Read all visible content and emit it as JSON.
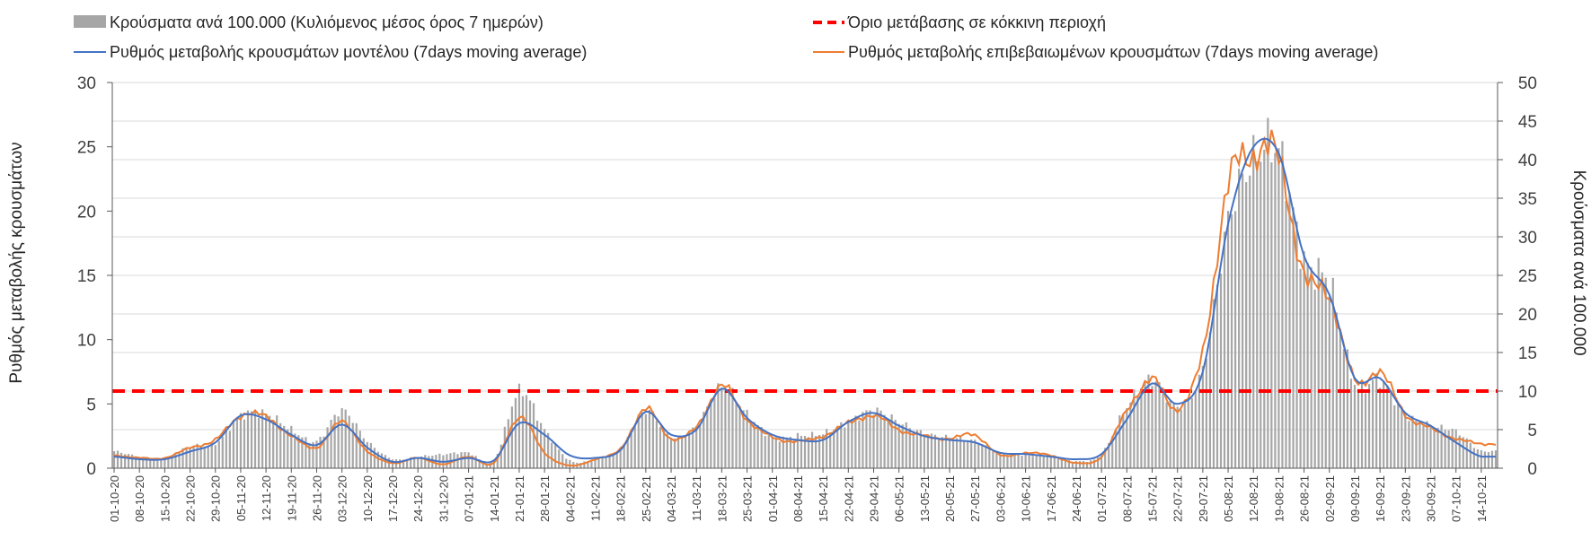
{
  "chart_data": {
    "type": "bar+line",
    "legend": {
      "bars": "Κρούσματα ανά 100.000 (Κυλιόμενος μέσος όρος 7 ημερών)",
      "threshold": "Όριο μετάβασης σε κόκκινη περιοχή",
      "model": "Ρυθμός μεταβολής κρουσμάτων μοντέλου (7days moving average)",
      "confirmed": "Ρυθμός μεταβολής επιβεβαιωμένων κρουσμάτων (7days moving average)"
    },
    "ylabel_left": "Ρυθμός μεταβολής κρουσμάτων",
    "ylabel_right": "Κρούσματα ανά 100.000",
    "y_left": {
      "min": 0,
      "max": 30,
      "ticks": [
        0,
        5,
        10,
        15,
        20,
        25,
        30
      ]
    },
    "y_right": {
      "min": 0,
      "max": 50,
      "ticks": [
        0,
        5,
        10,
        15,
        20,
        25,
        30,
        35,
        40,
        45,
        50
      ]
    },
    "x_labels": [
      "01-10-20",
      "08-10-20",
      "15-10-20",
      "22-10-20",
      "29-10-20",
      "05-11-20",
      "12-11-20",
      "19-11-20",
      "26-11-20",
      "03-12-20",
      "10-12-20",
      "17-12-20",
      "24-12-20",
      "31-12-20",
      "07-01-21",
      "14-01-21",
      "21-01-21",
      "28-01-21",
      "04-02-21",
      "11-02-21",
      "18-02-21",
      "25-02-21",
      "04-03-21",
      "11-03-21",
      "18-03-21",
      "25-03-21",
      "01-04-21",
      "08-04-21",
      "15-04-21",
      "22-04-21",
      "29-04-21",
      "06-05-21",
      "13-05-21",
      "20-05-21",
      "27-05-21",
      "03-06-21",
      "10-06-21",
      "17-06-21",
      "24-06-21",
      "01-07-21",
      "08-07-21",
      "15-07-21",
      "22-07-21",
      "29-07-21",
      "05-08-21",
      "12-08-21",
      "19-08-21",
      "26-08-21",
      "02-09-21",
      "09-09-21",
      "16-09-21",
      "23-09-21",
      "30-09-21",
      "07-10-21",
      "14-10-21"
    ],
    "threshold_value": 6,
    "colors": {
      "bars": "#a6a6a6",
      "model": "#4472c4",
      "confirmed": "#ed7d31",
      "threshold": "#ff0000",
      "grid": "#d9d9d9",
      "axis": "#595959"
    },
    "series_weekly": {
      "bars_per_100k": [
        2.2,
        1.5,
        1.3,
        2.8,
        3.2,
        6.8,
        7.0,
        5.0,
        3.5,
        7.5,
        3.5,
        1.2,
        1.5,
        1.8,
        2.0,
        1.0,
        10.0,
        5.0,
        1.0,
        1.2,
        2.5,
        7.5,
        4.0,
        5.5,
        10.5,
        7.0,
        4.0,
        4.2,
        4.5,
        6.0,
        7.5,
        6.0,
        4.5,
        4.0,
        3.5,
        2.0,
        1.7,
        1.5,
        0.9,
        1.8,
        8.0,
        11.5,
        8.0,
        13.0,
        32.0,
        40.0,
        41.0,
        27.0,
        24.0,
        11.0,
        11.5,
        7.0,
        5.5,
        4.8,
        2.2
      ],
      "model_rate": [
        0.9,
        0.7,
        0.7,
        1.3,
        2.0,
        4.1,
        3.8,
        2.6,
        1.8,
        3.4,
        1.6,
        0.5,
        0.8,
        0.5,
        0.8,
        0.6,
        3.5,
        2.6,
        1.0,
        0.8,
        1.4,
        4.4,
        2.6,
        3.0,
        6.2,
        3.9,
        2.6,
        2.2,
        2.2,
        3.6,
        4.3,
        3.3,
        2.5,
        2.2,
        2.0,
        1.2,
        1.1,
        0.9,
        0.7,
        1.1,
        3.8,
        6.6,
        5.0,
        7.5,
        19.0,
        25.0,
        24.5,
        16.5,
        13.5,
        7.0,
        7.0,
        4.3,
        3.3,
        2.0,
        0.9
      ],
      "confirmed_rate": [
        1.0,
        0.8,
        0.8,
        1.6,
        2.2,
        4.1,
        4.0,
        2.5,
        1.6,
        3.6,
        1.3,
        0.4,
        0.8,
        0.3,
        0.9,
        0.4,
        4.0,
        1.2,
        0.2,
        0.7,
        1.5,
        4.6,
        2.3,
        3.2,
        6.4,
        3.8,
        2.4,
        2.1,
        2.5,
        3.5,
        4.1,
        3.0,
        2.5,
        2.3,
        2.6,
        1.0,
        1.2,
        1.0,
        0.4,
        0.9,
        4.5,
        6.9,
        4.6,
        9.0,
        22.0,
        24.5,
        24.0,
        15.0,
        13.5,
        6.8,
        7.5,
        4.2,
        3.1,
        2.3,
        1.9
      ]
    }
  }
}
